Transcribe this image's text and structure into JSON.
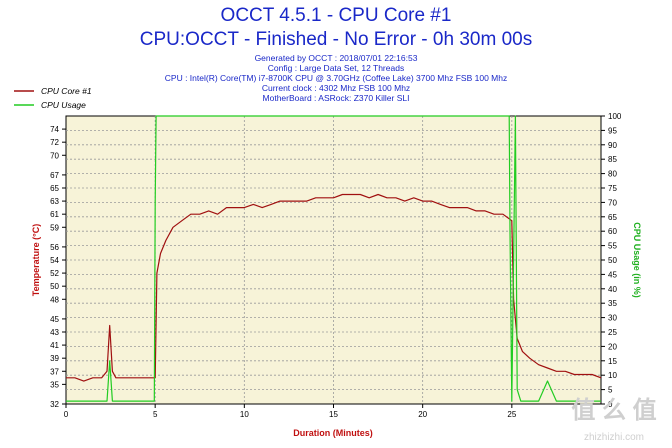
{
  "header": {
    "title_line1": "OCCT 4.5.1 - CPU Core #1",
    "title_line2": "CPU:OCCT - Finished - No Error - 0h 30m 00s",
    "info_lines": [
      "Generated by OCCT : 2018/07/01 22:16:53",
      "Config : Large Data Set, 12 Threads",
      "CPU : Intel(R) Core(TM) i7-8700K CPU @ 3.70GHz (Coffee Lake) 3700 Mhz FSB 100 Mhz",
      "Current clock : 4302 Mhz FSB 100 Mhz",
      "MotherBoard : ASRock: Z370 Killer SLI"
    ]
  },
  "watermark": {
    "logo_text": "值 么 值",
    "url": "zhizhizhi.com"
  },
  "chart_data": {
    "type": "line",
    "xlabel": "Duration (Minutes)",
    "ylabel_left": "Temperature (°C)",
    "ylabel_right": "CPU Usage (in %)",
    "xlim": [
      0,
      30
    ],
    "ylim_left": [
      32,
      76
    ],
    "ylim_right": [
      0,
      100
    ],
    "x_ticks": [
      0,
      5,
      10,
      15,
      20,
      25
    ],
    "y_ticks_left": [
      32,
      35,
      37,
      39,
      41,
      43,
      45,
      48,
      50,
      52,
      54,
      56,
      59,
      61,
      63,
      65,
      67,
      70,
      72,
      74
    ],
    "y_ticks_right": [
      0,
      5,
      10,
      15,
      20,
      25,
      30,
      35,
      40,
      45,
      50,
      55,
      60,
      65,
      70,
      75,
      80,
      85,
      90,
      95,
      100
    ],
    "grid": true,
    "legend_position": "top-left",
    "series": [
      {
        "name": "CPU Core #1",
        "axis": "left",
        "color": "#a01010",
        "x": [
          0,
          0.5,
          1.0,
          1.5,
          2.0,
          2.3,
          2.45,
          2.6,
          2.8,
          3.2,
          3.6,
          4.0,
          4.4,
          4.8,
          5.0,
          5.1,
          5.3,
          5.6,
          6.0,
          6.5,
          7.0,
          7.5,
          8.0,
          8.5,
          9.0,
          9.5,
          10.0,
          10.5,
          11.0,
          11.5,
          12.0,
          12.5,
          13.0,
          13.5,
          14.0,
          14.5,
          15.0,
          15.5,
          16.0,
          16.5,
          17.0,
          17.5,
          18.0,
          18.5,
          19.0,
          19.5,
          20.0,
          20.5,
          21.0,
          21.5,
          22.0,
          22.5,
          23.0,
          23.5,
          24.0,
          24.5,
          25.0,
          25.1,
          25.3,
          25.6,
          26.0,
          26.5,
          27.0,
          27.5,
          28.0,
          28.5,
          29.0,
          29.5,
          30.0
        ],
        "y": [
          36,
          36,
          35.5,
          36,
          36,
          37,
          44,
          37,
          36,
          36,
          36,
          36,
          36,
          36,
          36,
          52,
          55,
          57,
          59,
          60,
          61,
          61,
          61.5,
          61,
          62,
          62,
          62,
          62.5,
          62,
          62.5,
          63,
          63,
          63,
          63,
          63.5,
          63.5,
          63.5,
          64,
          64,
          64,
          63.5,
          64,
          63.5,
          63.5,
          63,
          63.5,
          63,
          63,
          62.5,
          62,
          62,
          62,
          61.5,
          61.5,
          61,
          61,
          60,
          48,
          42,
          40,
          39,
          38,
          37.5,
          37,
          37,
          36.5,
          36.5,
          36.5,
          36
        ]
      },
      {
        "name": "CPU Usage",
        "axis": "right",
        "color": "#22cc22",
        "x": [
          0,
          2.3,
          2.45,
          2.6,
          4.95,
          5.0,
          5.05,
          24.85,
          24.9,
          25.0,
          25.2,
          25.3,
          25.5,
          26.5,
          27.0,
          27.5,
          30.0
        ],
        "y": [
          1,
          1,
          15,
          1,
          1,
          70,
          100,
          100,
          60,
          1,
          100,
          5,
          1,
          1,
          8,
          1,
          1
        ]
      }
    ]
  }
}
